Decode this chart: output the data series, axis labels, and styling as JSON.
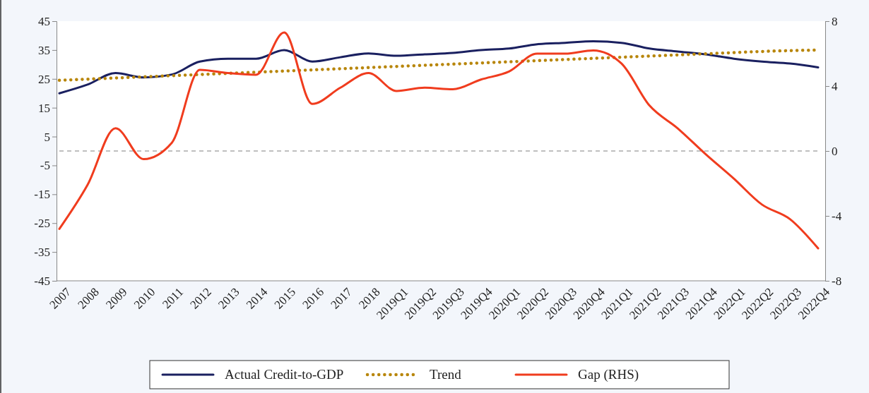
{
  "chart_data": {
    "type": "line",
    "categories": [
      "2007",
      "2008",
      "2009",
      "2010",
      "2011",
      "2012",
      "2013",
      "2014",
      "2015",
      "2016",
      "2017",
      "2018",
      "2019Q1",
      "2019Q2",
      "2019Q3",
      "2019Q4",
      "2020Q1",
      "2020Q2",
      "2020Q3",
      "2020Q4",
      "2021Q1",
      "2021Q2",
      "2021Q3",
      "2021Q4",
      "2022Q1",
      "2022Q2",
      "2022Q3",
      "2022Q4"
    ],
    "series": [
      {
        "name": "Actual Credit-to-GDP",
        "color": "#1a2060",
        "line_style": "solid",
        "values": [
          20,
          23,
          27,
          25.5,
          26.5,
          31,
          32,
          32,
          35,
          31,
          32.5,
          33.8,
          33,
          33.5,
          34,
          35,
          35.5,
          37,
          37.5,
          38,
          37.5,
          35.5,
          34.5,
          33.5,
          32,
          31,
          30.3,
          29
        ]
      },
      {
        "name": "Trend",
        "color": "#b8860b",
        "line_style": "dotted",
        "values": [
          24.5,
          24.9,
          25.3,
          25.7,
          26.1,
          26.5,
          26.9,
          27.3,
          27.7,
          28.1,
          28.5,
          28.9,
          29.3,
          29.7,
          30.1,
          30.5,
          30.9,
          31.3,
          31.7,
          32.1,
          32.5,
          32.9,
          33.3,
          33.7,
          34.1,
          34.5,
          34.8,
          35
        ]
      },
      {
        "name": "Gap (RHS)",
        "color": "#f03c1e",
        "line_style": "solid",
        "axis": "y2",
        "values": [
          -4.8,
          -2.1,
          1.4,
          -0.5,
          0.5,
          5,
          4.8,
          4.7,
          7.3,
          2.9,
          3.9,
          4.8,
          3.7,
          3.9,
          3.8,
          4.4,
          4.9,
          6,
          6,
          6.2,
          5.4,
          2.8,
          1.4,
          -0.2,
          -1.7,
          -3.3,
          -4.2,
          -6
        ]
      }
    ],
    "ylim": [
      -45,
      45
    ],
    "yticks": [
      -45,
      -35,
      -25,
      -15,
      -5,
      5,
      15,
      25,
      35,
      45
    ],
    "y2lim": [
      -8,
      8
    ],
    "y2ticks": [
      -8,
      -4,
      0,
      4,
      8
    ],
    "ref_lines": [
      {
        "axis": "y",
        "value": 0,
        "color": "#808080",
        "line_style": "dashed"
      }
    ],
    "grid": false,
    "legend": "bottom",
    "marker": "none"
  }
}
